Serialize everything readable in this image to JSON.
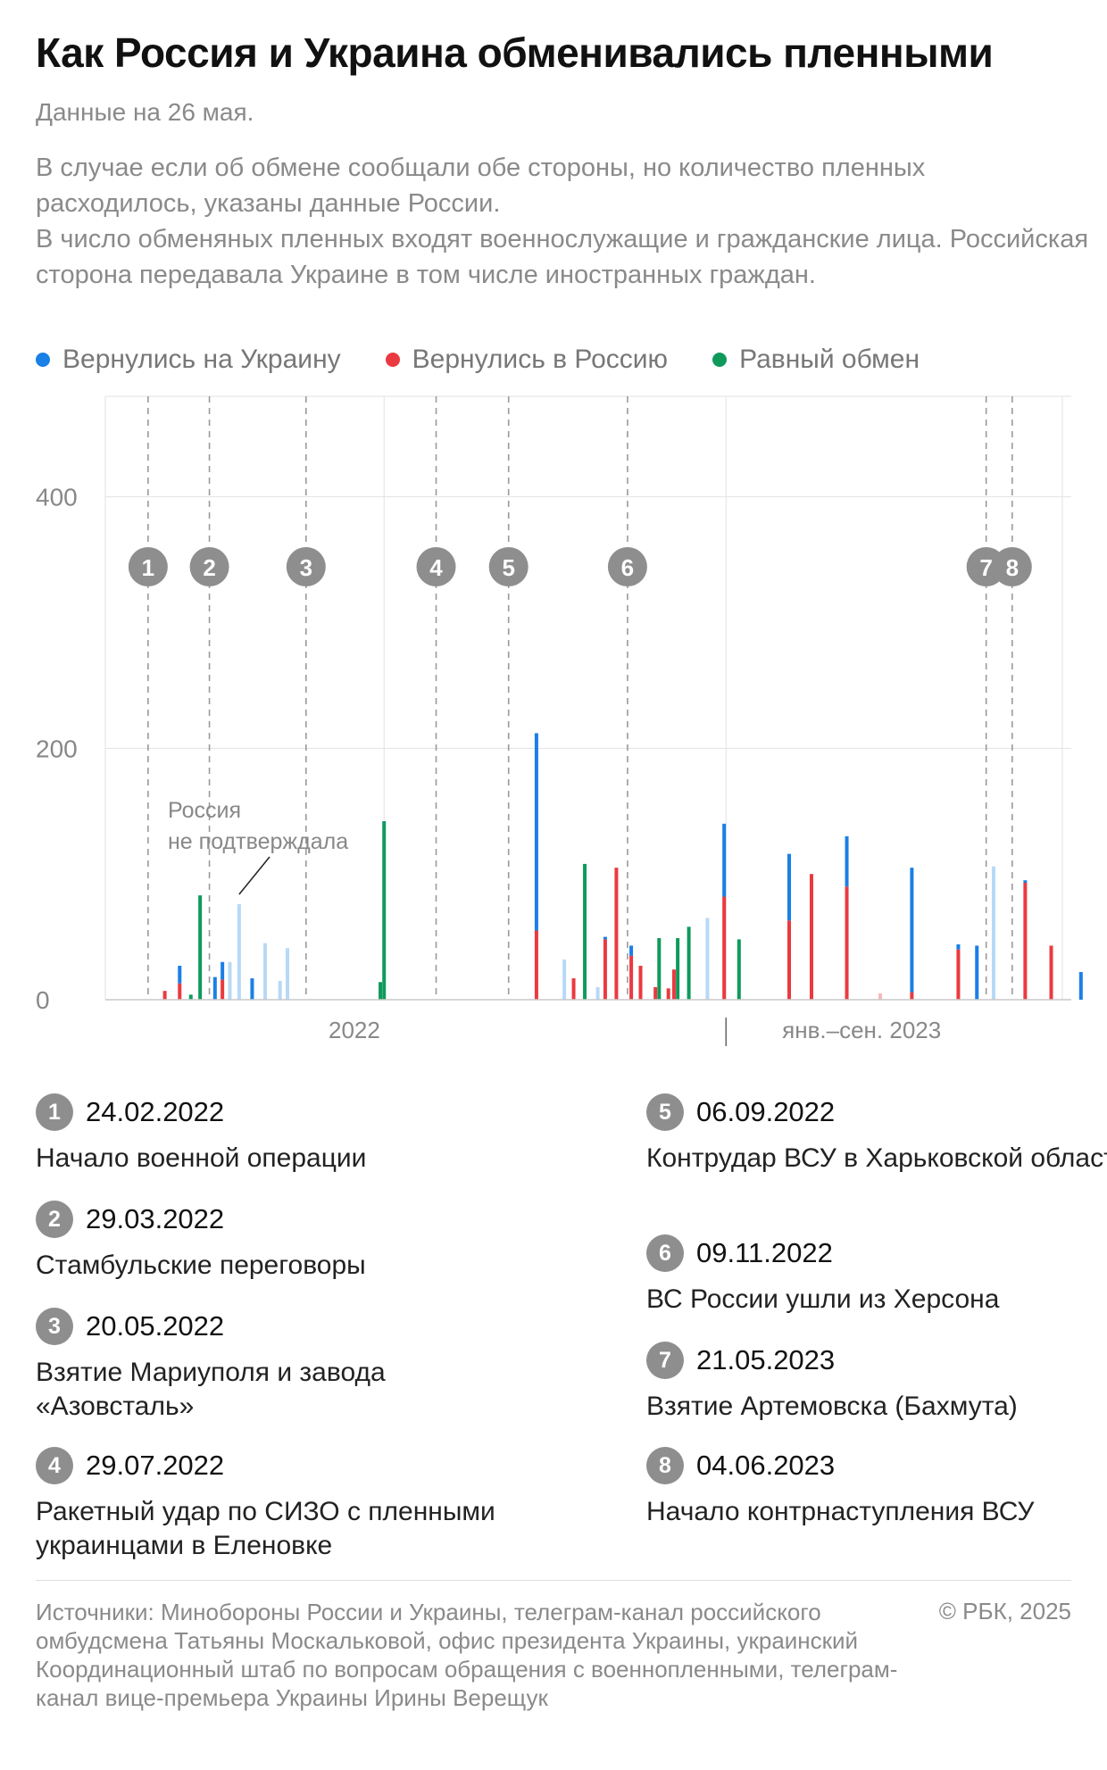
{
  "title": "Как Россия и Украина обменивались пленными",
  "date_note": "Данные на 26 мая.",
  "notes": [
    "В случае если об обмене сообщали обе стороны, но количество пленных расходилось, указаны данные России.",
    "В число обменяных пленных входят военнослужащие и гражданские лица. Российская сторона передавала Украине в том числе иностранных граждан."
  ],
  "legend": [
    {
      "label": "Вернулись на Украину",
      "color": "#1a7fe6"
    },
    {
      "label": "Вернулись в Россию",
      "color": "#ea3a3f"
    },
    {
      "label": "Равный обмен",
      "color": "#0f9a5b"
    }
  ],
  "annotation": [
    "Россия",
    "не подтверждала"
  ],
  "chart_data": {
    "type": "bar",
    "ylim": [
      0,
      480
    ],
    "yticks": [
      0,
      200,
      400
    ],
    "x_range": [
      "2022-02-01",
      "2023-07-01"
    ],
    "x_period_labels": [
      {
        "label": "2022",
        "center": "2022-06-15"
      },
      {
        "label": "янв.–сен. 2023",
        "center": "2023-03-15"
      }
    ],
    "year_divider": "2023-01-01",
    "grid_months": [
      "2022-07-01",
      "2023-01-01"
    ],
    "events": [
      {
        "n": "1",
        "date": "2022-02-24"
      },
      {
        "n": "2",
        "date": "2022-03-29"
      },
      {
        "n": "3",
        "date": "2022-05-20"
      },
      {
        "n": "4",
        "date": "2022-07-29"
      },
      {
        "n": "5",
        "date": "2022-09-06"
      },
      {
        "n": "6",
        "date": "2022-11-09"
      },
      {
        "n": "7",
        "date": "2023-05-21"
      },
      {
        "n": "8",
        "date": "2023-06-04"
      }
    ],
    "colors": {
      "ukraine": "#1a7fe6",
      "russia": "#ea3a3f",
      "equal": "#0f9a5b",
      "unconfirmed": "#b7d9f7",
      "russia_light": "#f7b9bb"
    },
    "series": [
      {
        "date": "2022-03-05",
        "russia": 7
      },
      {
        "date": "2022-03-13",
        "russia": 13,
        "ukraine": 14
      },
      {
        "date": "2022-03-19",
        "equal": 4
      },
      {
        "date": "2022-03-24",
        "equal": 83
      },
      {
        "date": "2022-04-01",
        "ukraine": 18
      },
      {
        "date": "2022-04-05",
        "russia": 16,
        "ukraine": 14
      },
      {
        "date": "2022-04-09",
        "unconfirmed": 30
      },
      {
        "date": "2022-04-14",
        "unconfirmed": 76
      },
      {
        "date": "2022-04-21",
        "ukraine": 17
      },
      {
        "date": "2022-04-28",
        "unconfirmed": 45
      },
      {
        "date": "2022-05-06",
        "unconfirmed": 15
      },
      {
        "date": "2022-05-10",
        "unconfirmed": 41
      },
      {
        "date": "2022-06-29",
        "equal": 14
      },
      {
        "date": "2022-07-01",
        "equal": 142
      },
      {
        "date": "2022-09-21",
        "ukraine": 157,
        "russia": 55
      },
      {
        "date": "2022-10-06",
        "unconfirmed": 32
      },
      {
        "date": "2022-10-11",
        "russia": 17
      },
      {
        "date": "2022-10-17",
        "equal": 108
      },
      {
        "date": "2022-10-24",
        "unconfirmed": 10
      },
      {
        "date": "2022-10-28",
        "russia": 48,
        "ukraine": 2
      },
      {
        "date": "2022-11-03",
        "russia": 105
      },
      {
        "date": "2022-11-11",
        "russia": 35,
        "ukraine": 8
      },
      {
        "date": "2022-11-16",
        "russia": 27
      },
      {
        "date": "2022-11-24",
        "russia": 10
      },
      {
        "date": "2022-11-26",
        "equal": 49
      },
      {
        "date": "2022-12-01",
        "russia": 9
      },
      {
        "date": "2022-12-04",
        "russia": 24
      },
      {
        "date": "2022-12-06",
        "equal": 49
      },
      {
        "date": "2022-12-12",
        "equal": 58
      },
      {
        "date": "2022-12-22",
        "unconfirmed": 65
      },
      {
        "date": "2022-12-31",
        "russia": 82,
        "ukraine": 58
      },
      {
        "date": "2023-01-08",
        "equal": 48
      },
      {
        "date": "2023-02-04",
        "russia": 63,
        "ukraine": 53
      },
      {
        "date": "2023-02-16",
        "russia": 100
      },
      {
        "date": "2023-03-07",
        "russia": 90,
        "ukraine": 40
      },
      {
        "date": "2023-03-25",
        "russia_light": 5
      },
      {
        "date": "2023-04-11",
        "russia": 6,
        "ukraine": 99
      },
      {
        "date": "2023-05-06",
        "russia": 40,
        "ukraine": 4
      },
      {
        "date": "2023-05-16",
        "ukraine": 43
      },
      {
        "date": "2023-05-25",
        "unconfirmed": 106
      },
      {
        "date": "2023-06-11",
        "russia": 93,
        "ukraine": 2
      },
      {
        "date": "2023-06-25",
        "russia": 43
      },
      {
        "date": "2023-07-11",
        "ukraine": 22
      }
    ]
  },
  "event_list": [
    {
      "n": "1",
      "date": "24.02.2022",
      "text": "Начало военной операции"
    },
    {
      "n": "2",
      "date": "29.03.2022",
      "text": "Стамбульские переговоры"
    },
    {
      "n": "3",
      "date": "20.05.2022",
      "text": "Взятие Мариуполя и завода «Азовсталь»"
    },
    {
      "n": "4",
      "date": "29.07.2022",
      "text": "Ракетный удар по СИЗО с пленными украинцами в Еленовке"
    },
    {
      "n": "5",
      "date": "06.09.2022",
      "text": "Контрудар ВСУ в Харьковской области"
    },
    {
      "n": "6",
      "date": "09.11.2022",
      "text": "ВС России ушли из Херсона"
    },
    {
      "n": "7",
      "date": "21.05.2023",
      "text": "Взятие Артемовска (Бахмута)"
    },
    {
      "n": "8",
      "date": "04.06.2023",
      "text": "Начало контрнаступления ВСУ"
    }
  ],
  "source": "Источники: Минобороны России и Украины, телеграм-канал российского омбудсмена Татьяны Москальковой, офис президента Украины, украинский Координационный штаб по вопросам обращения с военнопленными, телеграм-канал вице-премьера Украины Ирины Верещук",
  "copyright": "© РБК, 2025"
}
